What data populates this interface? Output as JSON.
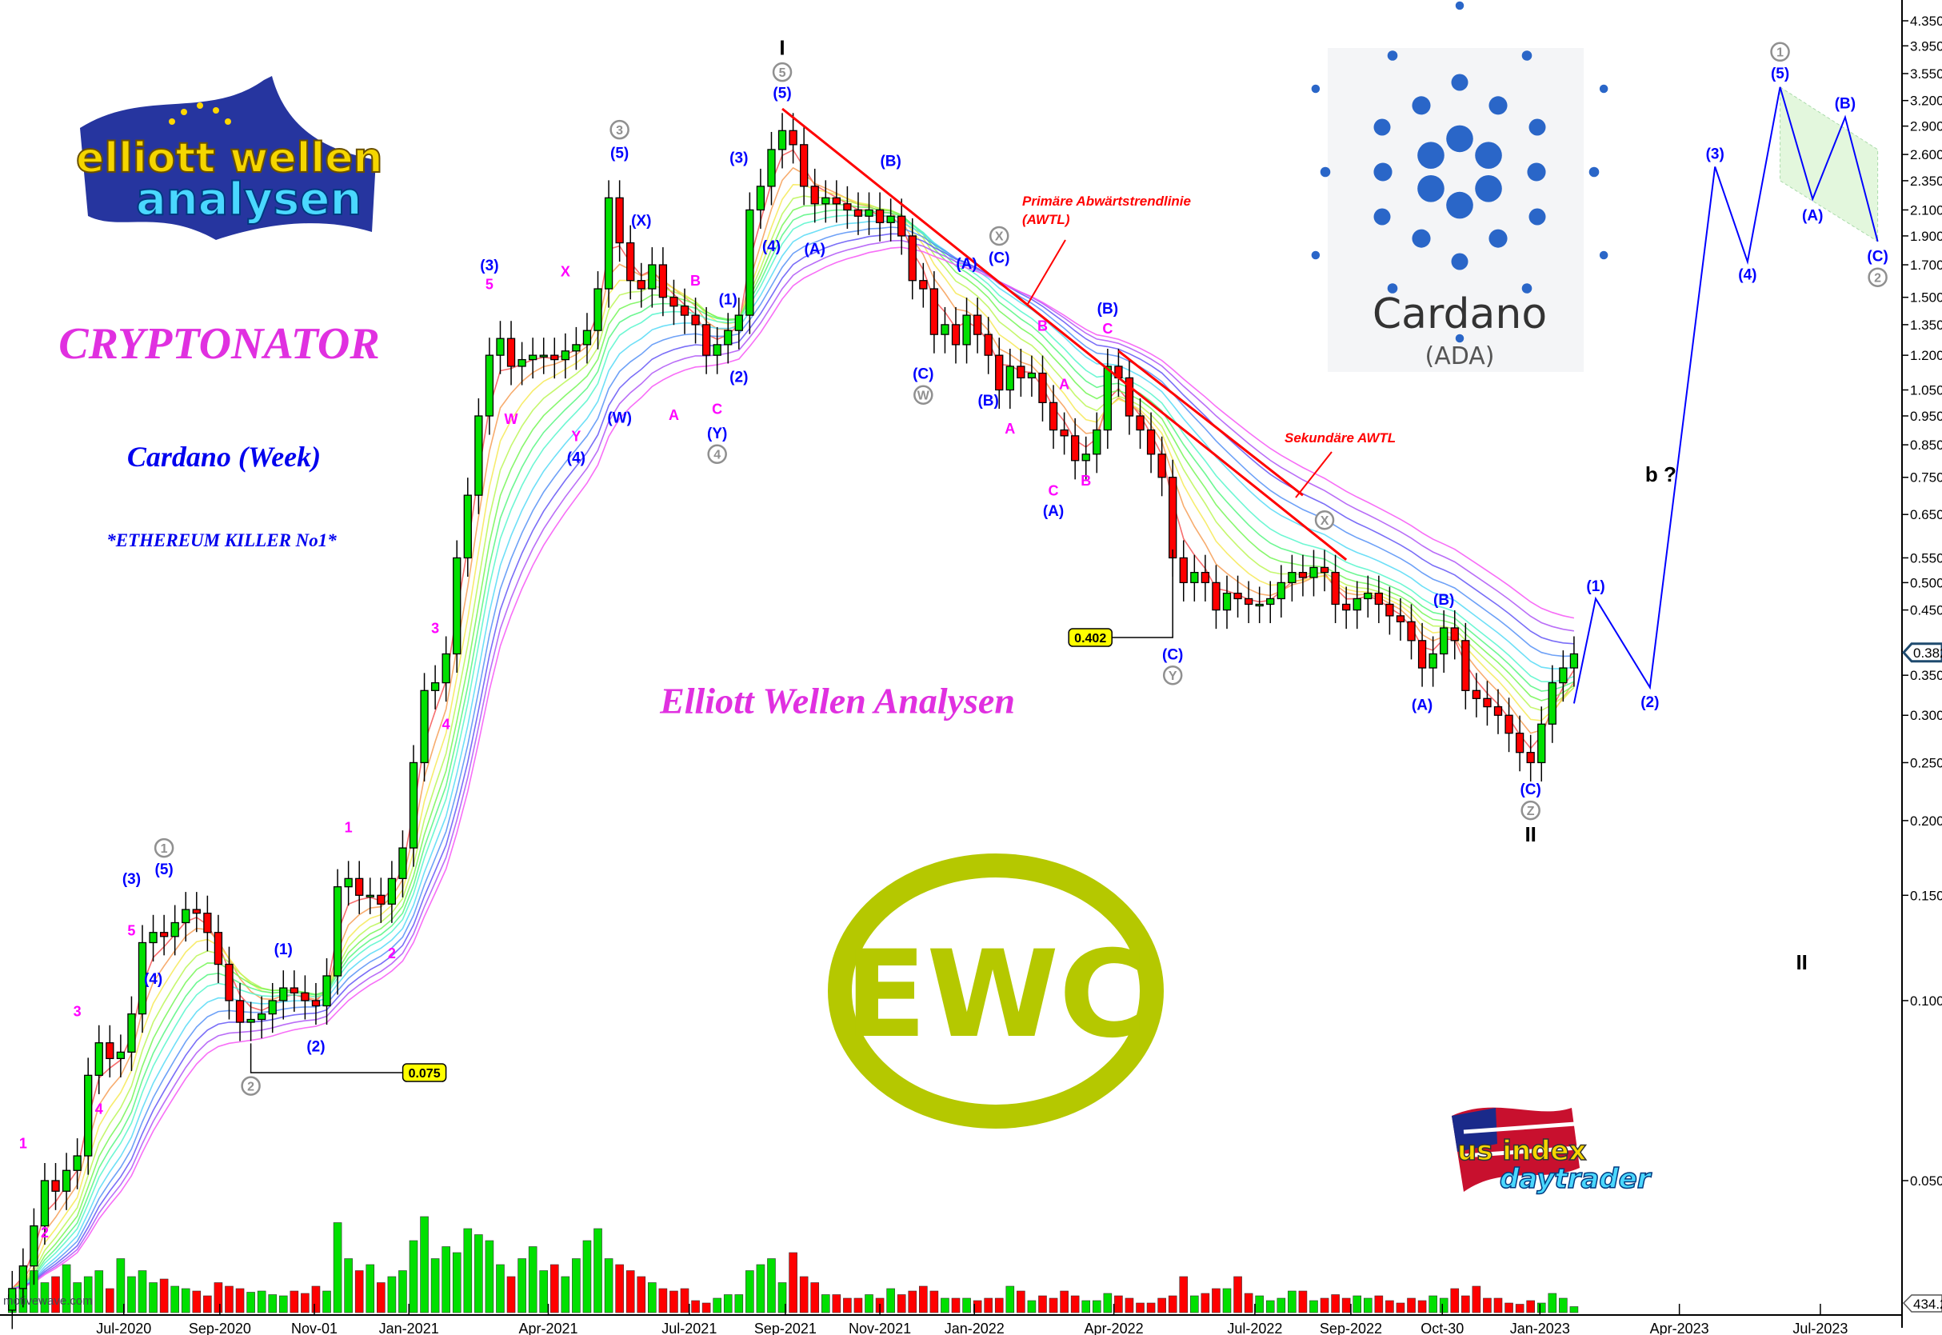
{
  "titles": {
    "main": "CRYPTONATOR",
    "subtitle": "Cardano (Week)",
    "tagline": "*ETHEREUM KILLER No1*",
    "center": "Elliott Wellen Analysen"
  },
  "notes": {
    "primary_line1": "Primäre Abwärtstrendlinie",
    "primary_line2": "(AWTL)",
    "secondary": "Sekundäre AWTL"
  },
  "logos": {
    "elliott_top": "elliott wellen",
    "elliott_bottom": "analysen",
    "cardano_name": "Cardano",
    "cardano_ticker": "(ADA)",
    "ewc": "EWC",
    "usindex_top": "us index",
    "usindex_bottom": "daytrader"
  },
  "watermark": "motivewave.com",
  "colors": {
    "up": "#00e000",
    "down": "#ff0000",
    "wave_blue": "#0000ff",
    "wave_magenta": "#ff00ff",
    "wave_grey": "#909090",
    "trendline": "#ff0000",
    "projection": "#0000ff",
    "ewc": "#b5c800",
    "callout": "#ffff00"
  },
  "chart_data": {
    "type": "candlestick",
    "scale": "log",
    "ylim": [
      0.04,
      4.6
    ],
    "first_candle": "2020-04-20",
    "interval": "week",
    "yticks": [
      4.35,
      3.95,
      3.55,
      3.2,
      2.9,
      2.6,
      2.35,
      2.1,
      1.9,
      1.7,
      1.5,
      1.35,
      1.2,
      1.05,
      0.95,
      0.85,
      0.75,
      0.65,
      0.55,
      0.5,
      0.45,
      0.35,
      0.3,
      0.25,
      0.2,
      0.15,
      0.1,
      0.05
    ],
    "ytick_labels": [
      "4.350",
      "3.950",
      "3.550",
      "3.200",
      "2.900",
      "2.600",
      "2.350",
      "2.100",
      "1.900",
      "1.700",
      "1.500",
      "1.350",
      "1.200",
      "1.050",
      "0.950",
      "0.850",
      "0.750",
      "0.650",
      "0.550",
      "0.500",
      "0.450",
      "0.350",
      "0.300",
      "0.250",
      "0.200",
      "0.150",
      "0.100",
      "0.050"
    ],
    "last_price": 0.382,
    "last_price_label": "0.382",
    "volume_label": "434.2",
    "xticks": [
      {
        "label": "Jul-2020",
        "date": "2020-07-01"
      },
      {
        "label": "Sep-2020",
        "date": "2020-09-01"
      },
      {
        "label": "Nov-01",
        "date": "2020-11-01"
      },
      {
        "label": "Jan-2021",
        "date": "2021-01-01"
      },
      {
        "label": "Apr-2021",
        "date": "2021-04-01"
      },
      {
        "label": "Jul-2021",
        "date": "2021-07-01"
      },
      {
        "label": "Sep-2021",
        "date": "2021-09-01"
      },
      {
        "label": "Nov-2021",
        "date": "2021-11-01"
      },
      {
        "label": "Jan-2022",
        "date": "2022-01-01"
      },
      {
        "label": "Apr-2022",
        "date": "2022-04-01"
      },
      {
        "label": "Jul-2022",
        "date": "2022-07-01"
      },
      {
        "label": "Sep-2022",
        "date": "2022-09-01"
      },
      {
        "label": "Oct-30",
        "date": "2022-10-30"
      },
      {
        "label": "Jan-2023",
        "date": "2023-01-01"
      },
      {
        "label": "Apr-2023",
        "date": "2023-04-01"
      },
      {
        "label": "Jul-2023",
        "date": "2023-07-01"
      }
    ],
    "closes": [
      0.033,
      0.036,
      0.042,
      0.05,
      0.048,
      0.052,
      0.055,
      0.075,
      0.085,
      0.08,
      0.082,
      0.095,
      0.125,
      0.13,
      0.128,
      0.135,
      0.142,
      0.14,
      0.13,
      0.115,
      0.1,
      0.092,
      0.093,
      0.095,
      0.1,
      0.105,
      0.103,
      0.1,
      0.098,
      0.11,
      0.155,
      0.16,
      0.15,
      0.15,
      0.145,
      0.16,
      0.18,
      0.25,
      0.33,
      0.34,
      0.38,
      0.55,
      0.7,
      0.95,
      1.2,
      1.28,
      1.15,
      1.18,
      1.2,
      1.2,
      1.18,
      1.22,
      1.25,
      1.32,
      1.55,
      2.2,
      1.85,
      1.6,
      1.55,
      1.7,
      1.5,
      1.45,
      1.4,
      1.35,
      1.2,
      1.25,
      1.32,
      1.4,
      2.1,
      2.3,
      2.65,
      2.85,
      2.7,
      2.3,
      2.15,
      2.2,
      2.15,
      2.1,
      2.05,
      2.1,
      2.0,
      2.05,
      1.9,
      1.6,
      1.55,
      1.3,
      1.35,
      1.25,
      1.4,
      1.3,
      1.2,
      1.05,
      1.15,
      1.1,
      1.12,
      1.0,
      0.9,
      0.88,
      0.8,
      0.82,
      0.9,
      1.15,
      1.1,
      0.95,
      0.9,
      0.82,
      0.75,
      0.55,
      0.5,
      0.52,
      0.5,
      0.45,
      0.48,
      0.47,
      0.46,
      0.46,
      0.47,
      0.5,
      0.52,
      0.51,
      0.53,
      0.52,
      0.46,
      0.45,
      0.47,
      0.48,
      0.46,
      0.44,
      0.43,
      0.4,
      0.36,
      0.38,
      0.42,
      0.4,
      0.33,
      0.32,
      0.31,
      0.3,
      0.28,
      0.26,
      0.25,
      0.29,
      0.34,
      0.36,
      0.38
    ],
    "volumes": [
      15,
      20,
      35,
      25,
      30,
      40,
      25,
      30,
      35,
      20,
      45,
      30,
      35,
      25,
      28,
      22,
      20,
      18,
      14,
      25,
      22,
      20,
      17,
      18,
      15,
      14,
      18,
      16,
      22,
      18,
      75,
      45,
      35,
      40,
      25,
      30,
      35,
      60,
      80,
      45,
      55,
      50,
      70,
      65,
      60,
      40,
      30,
      45,
      55,
      35,
      40,
      30,
      45,
      60,
      70,
      45,
      40,
      35,
      30,
      25,
      20,
      18,
      20,
      10,
      8,
      12,
      15,
      15,
      35,
      40,
      45,
      25,
      50,
      30,
      25,
      15,
      15,
      12,
      12,
      15,
      12,
      20,
      15,
      18,
      22,
      18,
      12,
      12,
      12,
      10,
      12,
      12,
      22,
      18,
      10,
      14,
      12,
      18,
      14,
      10,
      10,
      16,
      14,
      12,
      8,
      8,
      12,
      14,
      30,
      14,
      16,
      20,
      20,
      30,
      16,
      14,
      10,
      12,
      18,
      18,
      10,
      12,
      15,
      12,
      14,
      12,
      14,
      10,
      8,
      12,
      10,
      14,
      12,
      20,
      14,
      22,
      12,
      12,
      8,
      7,
      10,
      8,
      16,
      12,
      5
    ],
    "callouts": [
      {
        "label": "0.075",
        "date": "2020-09-21",
        "price": 0.075
      },
      {
        "label": "0.402",
        "date": "2022-05-09",
        "price": 0.402
      }
    ],
    "trendlines": [
      {
        "name": "primary",
        "from": {
          "date": "2021-08-30",
          "price": 3.1
        },
        "to": {
          "date": "2022-08-29",
          "price": 0.546
        }
      },
      {
        "name": "secondary",
        "from": {
          "date": "2022-04-04",
          "price": 1.22
        },
        "to": {
          "date": "2022-08-01",
          "price": 0.7
        }
      }
    ],
    "projection": [
      {
        "date": "2023-01-23",
        "price": 0.314
      },
      {
        "date": "2023-02-06",
        "price": 0.47
      },
      {
        "date": "2023-03-13",
        "price": 0.334
      },
      {
        "date": "2023-04-24",
        "price": 2.48
      },
      {
        "date": "2023-05-15",
        "price": 1.72
      },
      {
        "date": "2023-06-05",
        "price": 3.37
      },
      {
        "date": "2023-06-26",
        "price": 2.19
      },
      {
        "date": "2023-07-17",
        "price": 3.0
      },
      {
        "date": "2023-08-07",
        "price": 1.86
      }
    ],
    "channel": [
      {
        "date": "2023-06-05",
        "price": 3.37
      },
      {
        "date": "2023-08-07",
        "price": 2.65
      },
      {
        "date": "2023-08-07",
        "price": 1.86
      },
      {
        "date": "2023-06-05",
        "price": 2.35
      }
    ],
    "wave_labels": [
      {
        "t": "I",
        "style": "black",
        "date": "2021-08-30",
        "price": 3.93
      },
      {
        "t": "II",
        "style": "black",
        "date": "2022-12-26",
        "price": 0.19
      },
      {
        "t": "II",
        "style": "black",
        "date": "2023-06-19",
        "price": 0.116
      },
      {
        "t": "b ?",
        "style": "black",
        "date": "2023-03-20",
        "price": 0.76
      },
      {
        "t": "1",
        "style": "grey",
        "date": "2020-07-27",
        "price": 0.18
      },
      {
        "t": "2",
        "style": "grey",
        "date": "2020-09-21",
        "price": 0.072
      },
      {
        "t": "3",
        "style": "grey",
        "date": "2021-05-17",
        "price": 2.86
      },
      {
        "t": "4",
        "style": "grey",
        "date": "2021-07-19",
        "price": 0.82
      },
      {
        "t": "5",
        "style": "grey",
        "date": "2021-08-30",
        "price": 3.57
      },
      {
        "t": "W",
        "style": "grey",
        "date": "2021-11-29",
        "price": 1.03
      },
      {
        "t": "X",
        "style": "grey",
        "date": "2022-01-17",
        "price": 1.9
      },
      {
        "t": "Y",
        "style": "grey",
        "date": "2022-05-09",
        "price": 0.35
      },
      {
        "t": "X",
        "style": "grey",
        "date": "2022-08-15",
        "price": 0.636
      },
      {
        "t": "Z",
        "style": "grey",
        "date": "2022-12-26",
        "price": 0.208
      },
      {
        "t": "1",
        "style": "grey",
        "date": "2023-06-05",
        "price": 3.86
      },
      {
        "t": "2",
        "style": "grey",
        "date": "2023-08-07",
        "price": 1.62
      },
      {
        "t": "(3)",
        "style": "blue",
        "date": "2020-07-06",
        "price": 0.16
      },
      {
        "t": "(5)",
        "style": "blue",
        "date": "2020-07-27",
        "price": 0.166
      },
      {
        "t": "(4)",
        "style": "blue",
        "date": "2020-07-20",
        "price": 0.109
      },
      {
        "t": "(1)",
        "style": "blue",
        "date": "2020-10-12",
        "price": 0.122
      },
      {
        "t": "(2)",
        "style": "blue",
        "date": "2020-11-02",
        "price": 0.084
      },
      {
        "t": "(3)",
        "style": "blue",
        "date": "2021-02-22",
        "price": 1.7
      },
      {
        "t": "(4)",
        "style": "blue",
        "date": "2021-04-19",
        "price": 0.81
      },
      {
        "t": "(5)",
        "style": "blue",
        "date": "2021-05-17",
        "price": 2.62
      },
      {
        "t": "(W)",
        "style": "blue",
        "date": "2021-05-17",
        "price": 0.945
      },
      {
        "t": "(X)",
        "style": "blue",
        "date": "2021-05-31",
        "price": 2.02
      },
      {
        "t": "(Y)",
        "style": "blue",
        "date": "2021-07-19",
        "price": 0.89
      },
      {
        "t": "(1)",
        "style": "blue",
        "date": "2021-07-26",
        "price": 1.49
      },
      {
        "t": "(2)",
        "style": "blue",
        "date": "2021-08-02",
        "price": 1.106
      },
      {
        "t": "(3)",
        "style": "blue",
        "date": "2021-08-02",
        "price": 2.57
      },
      {
        "t": "(4)",
        "style": "blue",
        "date": "2021-08-23",
        "price": 1.83
      },
      {
        "t": "(5)",
        "style": "blue",
        "date": "2021-08-30",
        "price": 3.3
      },
      {
        "t": "(A)",
        "style": "blue",
        "date": "2021-09-20",
        "price": 1.81
      },
      {
        "t": "(B)",
        "style": "blue",
        "date": "2021-11-08",
        "price": 2.54
      },
      {
        "t": "(A)",
        "style": "blue",
        "date": "2021-12-27",
        "price": 1.71
      },
      {
        "t": "(C)",
        "style": "blue",
        "date": "2022-01-17",
        "price": 1.75
      },
      {
        "t": "(C)",
        "style": "blue",
        "date": "2021-11-29",
        "price": 1.12
      },
      {
        "t": "(B)",
        "style": "blue",
        "date": "2022-01-10",
        "price": 1.01
      },
      {
        "t": "(B)",
        "style": "blue",
        "date": "2022-03-28",
        "price": 1.44
      },
      {
        "t": "(A)",
        "style": "blue",
        "date": "2022-02-21",
        "price": 0.66
      },
      {
        "t": "(C)",
        "style": "blue",
        "date": "2022-05-09",
        "price": 0.38
      },
      {
        "t": "(B)",
        "style": "blue",
        "date": "2022-10-31",
        "price": 0.469
      },
      {
        "t": "(A)",
        "style": "blue",
        "date": "2022-10-17",
        "price": 0.313
      },
      {
        "t": "(C)",
        "style": "blue",
        "date": "2022-12-26",
        "price": 0.226
      },
      {
        "t": "(1)",
        "style": "blue",
        "date": "2023-02-06",
        "price": 0.494
      },
      {
        "t": "(2)",
        "style": "blue",
        "date": "2023-03-13",
        "price": 0.316
      },
      {
        "t": "(3)",
        "style": "blue",
        "date": "2023-04-24",
        "price": 2.61
      },
      {
        "t": "(4)",
        "style": "blue",
        "date": "2023-05-15",
        "price": 1.64
      },
      {
        "t": "(5)",
        "style": "blue",
        "date": "2023-06-05",
        "price": 3.56
      },
      {
        "t": "(A)",
        "style": "blue",
        "date": "2023-06-26",
        "price": 2.06
      },
      {
        "t": "(B)",
        "style": "blue",
        "date": "2023-07-17",
        "price": 3.17
      },
      {
        "t": "(C)",
        "style": "blue",
        "date": "2023-08-07",
        "price": 1.76
      },
      {
        "t": "1",
        "style": "magenta",
        "date": "2020-04-27",
        "price": 0.0578
      },
      {
        "t": "2",
        "style": "magenta",
        "date": "2020-05-11",
        "price": 0.041
      },
      {
        "t": "3",
        "style": "magenta",
        "date": "2020-06-01",
        "price": 0.096
      },
      {
        "t": "4",
        "style": "magenta",
        "date": "2020-06-15",
        "price": 0.066
      },
      {
        "t": "5",
        "style": "magenta",
        "date": "2020-07-06",
        "price": 0.131
      },
      {
        "t": "1",
        "style": "magenta",
        "date": "2020-11-23",
        "price": 0.195
      },
      {
        "t": "2",
        "style": "magenta",
        "date": "2020-12-21",
        "price": 0.12
      },
      {
        "t": "3",
        "style": "magenta",
        "date": "2021-01-18",
        "price": 0.42
      },
      {
        "t": "4",
        "style": "magenta",
        "date": "2021-01-25",
        "price": 0.29
      },
      {
        "t": "5",
        "style": "magenta",
        "date": "2021-02-22",
        "price": 1.58
      },
      {
        "t": "W",
        "style": "magenta",
        "date": "2021-03-08",
        "price": 0.94
      },
      {
        "t": "X",
        "style": "magenta",
        "date": "2021-04-12",
        "price": 1.66
      },
      {
        "t": "Y",
        "style": "magenta",
        "date": "2021-04-19",
        "price": 0.88
      },
      {
        "t": "A",
        "style": "magenta",
        "date": "2021-06-21",
        "price": 0.954
      },
      {
        "t": "B",
        "style": "magenta",
        "date": "2021-07-05",
        "price": 1.6
      },
      {
        "t": "C",
        "style": "magenta",
        "date": "2021-07-19",
        "price": 0.977
      },
      {
        "t": "B",
        "style": "magenta",
        "date": "2022-02-14",
        "price": 1.345
      },
      {
        "t": "A",
        "style": "magenta",
        "date": "2022-02-28",
        "price": 1.075
      },
      {
        "t": "A",
        "style": "magenta",
        "date": "2022-01-24",
        "price": 0.905
      },
      {
        "t": "C",
        "style": "magenta",
        "date": "2022-02-21",
        "price": 0.713
      },
      {
        "t": "B",
        "style": "magenta",
        "date": "2022-03-14",
        "price": 0.741
      },
      {
        "t": "C",
        "style": "magenta",
        "date": "2022-03-28",
        "price": 1.33
      }
    ]
  }
}
